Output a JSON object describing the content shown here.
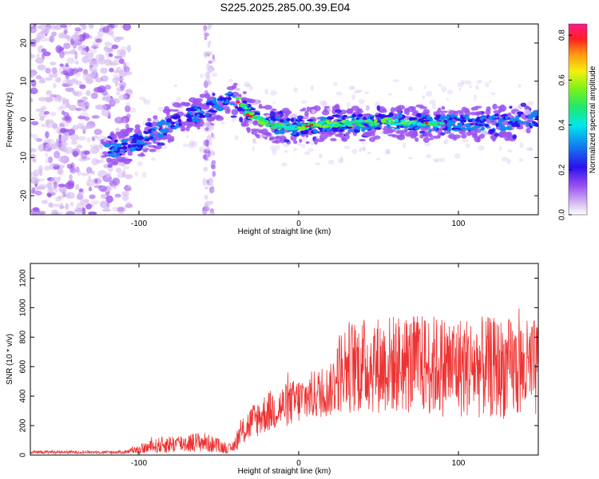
{
  "title": "S225.2025.285.00.39.E04",
  "chart_data": [
    {
      "type": "heatmap",
      "xlabel": "Height of straight line (km)",
      "ylabel": "Frequency (Hz)",
      "xlim": [
        -168,
        150
      ],
      "ylim": [
        -25,
        25
      ],
      "xticks": [
        -100,
        0,
        100
      ],
      "yticks": [
        -20,
        -10,
        0,
        10,
        20
      ],
      "colorbar": {
        "label": "Normalized spectral amplitude",
        "range": [
          0,
          0.85
        ],
        "ticks": [
          "0.0",
          "0.2",
          "0.4",
          "0.6",
          "0.8"
        ]
      },
      "ridge": {
        "x": [
          -118,
          -100,
          -80,
          -60,
          -45,
          -38,
          -30,
          -20,
          -10,
          0,
          10,
          20,
          40,
          60,
          80,
          100,
          120,
          148
        ],
        "y": [
          -8,
          -6,
          -1,
          2,
          5,
          5,
          1,
          -1,
          -2,
          -2,
          -1.5,
          -1,
          -1,
          -0.5,
          -1,
          -1,
          -1,
          0
        ]
      }
    },
    {
      "type": "line",
      "xlabel": "Height of straight line (km)",
      "ylabel": "SNR (10 * v/v)",
      "xlim": [
        -168,
        150
      ],
      "ylim": [
        0,
        1300
      ],
      "xticks": [
        -100,
        0,
        100
      ],
      "yticks": [
        0,
        200,
        400,
        600,
        800,
        1000,
        1200
      ],
      "color": "#ee3333",
      "envelope": {
        "x": [
          -168,
          -110,
          -95,
          -85,
          -60,
          -50,
          -42,
          -38,
          -30,
          -20,
          -10,
          0,
          10,
          20,
          25,
          30,
          60,
          100,
          150
        ],
        "mean": [
          20,
          20,
          50,
          70,
          90,
          60,
          40,
          120,
          220,
          290,
          330,
          370,
          410,
          440,
          560,
          600,
          620,
          600,
          580
        ],
        "spread": [
          10,
          10,
          40,
          60,
          70,
          50,
          30,
          80,
          120,
          140,
          150,
          160,
          170,
          180,
          280,
          320,
          340,
          350,
          340
        ]
      }
    }
  ]
}
